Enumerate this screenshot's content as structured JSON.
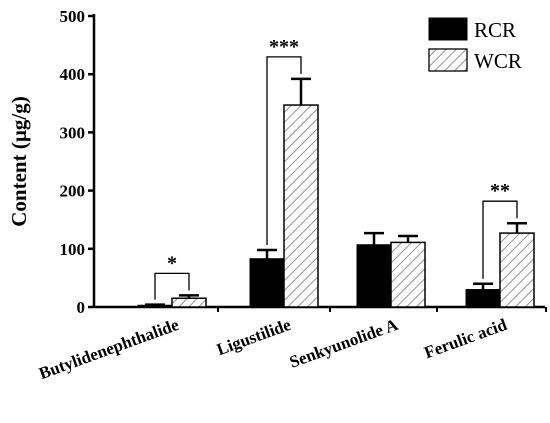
{
  "chart_data": {
    "type": "bar",
    "ylabel": "Content (µg/g)",
    "ylim": [
      0,
      500
    ],
    "yticks": [
      0,
      100,
      200,
      300,
      400,
      500
    ],
    "categories": [
      "Butylidenephthalide",
      "Ligustilide",
      "Senkyunolide A",
      "Ferulic acid"
    ],
    "series": [
      {
        "name": "RCR",
        "fill": "#000000",
        "pattern": "solid",
        "values": [
          3,
          83,
          107,
          30
        ],
        "errors": [
          1,
          15,
          20,
          10
        ]
      },
      {
        "name": "WCR",
        "fill": "#ffffff",
        "pattern": "hatched",
        "values": [
          15,
          347,
          111,
          127
        ],
        "errors": [
          5,
          45,
          11,
          17
        ]
      }
    ],
    "significance": [
      "*",
      "***",
      "",
      "**"
    ],
    "legend_position": "top-right",
    "colors": {
      "axis": "#000000",
      "hatch": "#888888"
    }
  }
}
